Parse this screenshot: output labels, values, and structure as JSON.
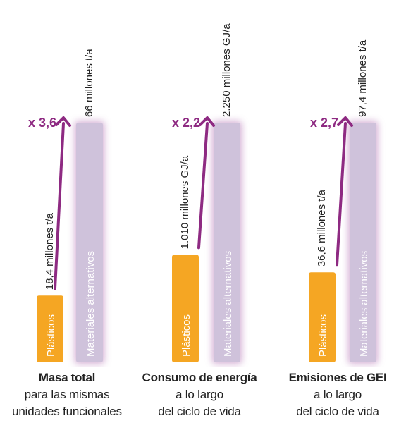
{
  "chart_data": [
    {
      "type": "bar",
      "categories": [
        "Plásticos",
        "Materiales alternativos"
      ],
      "values": [
        18.4,
        66
      ],
      "value_labels": [
        "18,4 millones t/a",
        "66 millones t/a"
      ],
      "multiplier": "x 3,6",
      "title": "Masa total",
      "subtitle": [
        "para las mismas",
        "unidades funcionales"
      ]
    },
    {
      "type": "bar",
      "categories": [
        "Plásticos",
        "Materiales alternativos"
      ],
      "values": [
        1010,
        2250
      ],
      "value_labels": [
        "1.010 millones GJ/a",
        "2.250 millones GJ/a"
      ],
      "multiplier": "x 2,2",
      "title": "Consumo de energía",
      "subtitle": [
        "a lo largo",
        "del ciclo de vida"
      ]
    },
    {
      "type": "bar",
      "categories": [
        "Plásticos",
        "Materiales alternativos"
      ],
      "values": [
        36.6,
        97.4
      ],
      "value_labels": [
        "36,6 millones t/a",
        "97,4 millones t/a"
      ],
      "multiplier": "x 2,7",
      "title": "Emisiones de GEI",
      "subtitle": [
        "a lo largo",
        "del ciclo de vida"
      ]
    }
  ],
  "colors": {
    "plastics": "#f5a623",
    "alternatives": "#cfc2db",
    "arrow": "#8e2a82",
    "glow": "#c99ac9"
  }
}
